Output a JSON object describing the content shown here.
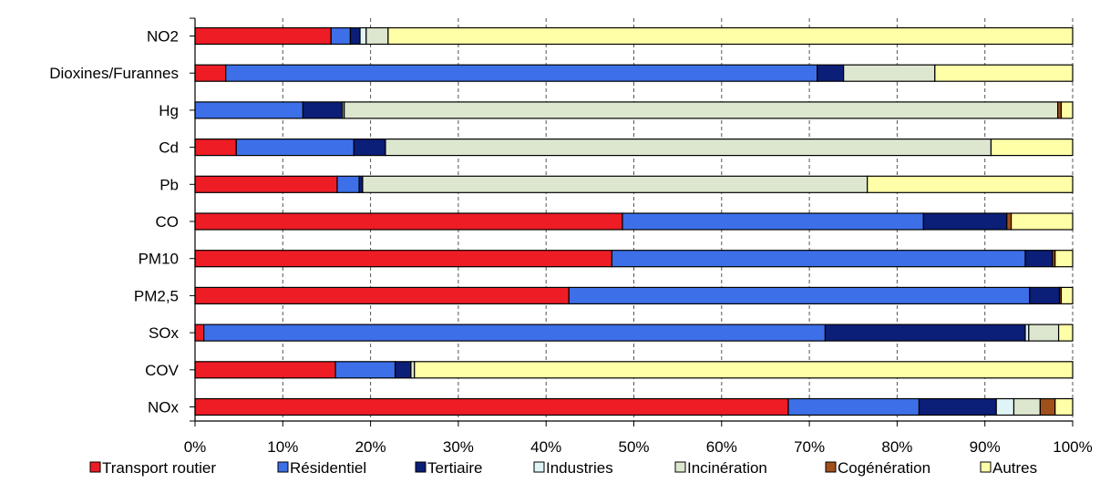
{
  "chart_data": {
    "type": "bar",
    "orientation": "horizontal",
    "stacked": true,
    "normalized": true,
    "categories": [
      "NO2",
      "Dioxines/Furannes",
      "Hg",
      "Cd",
      "Pb",
      "CO",
      "PM10",
      "PM2,5",
      "SOx",
      "COV",
      "NOx"
    ],
    "series": [
      {
        "name": "Transport routier",
        "color": "#ee1c25",
        "values": [
          15.5,
          3.5,
          0.0,
          4.7,
          16.2,
          48.7,
          47.5,
          42.6,
          1.0,
          16.0,
          67.6
        ]
      },
      {
        "name": "Résidentiel",
        "color": "#3d6fe8",
        "values": [
          2.2,
          67.4,
          12.3,
          13.4,
          2.5,
          34.3,
          47.1,
          52.5,
          70.8,
          6.8,
          14.9
        ]
      },
      {
        "name": "Tertiaire",
        "color": "#0b1e78",
        "values": [
          1.1,
          3.0,
          4.5,
          3.6,
          0.4,
          9.5,
          3.1,
          3.4,
          22.8,
          1.8,
          8.8
        ]
      },
      {
        "name": "Industries",
        "color": "#dff4f6",
        "values": [
          0.7,
          0.0,
          0.2,
          0.0,
          0.0,
          0.0,
          0.0,
          0.0,
          0.4,
          0.0,
          2.0
        ]
      },
      {
        "name": "Incinération",
        "color": "#dde7cf",
        "values": [
          2.5,
          10.4,
          81.3,
          69.0,
          57.5,
          0.0,
          0.0,
          0.0,
          3.4,
          0.4,
          3.0
        ]
      },
      {
        "name": "Cogénération",
        "color": "#a0501a",
        "values": [
          0.0,
          0.0,
          0.4,
          0.0,
          0.0,
          0.5,
          0.3,
          0.2,
          0.0,
          0.0,
          1.7
        ]
      },
      {
        "name": "Autres",
        "color": "#ffffa8",
        "values": [
          78.0,
          15.7,
          1.3,
          9.3,
          23.4,
          7.0,
          2.0,
          1.3,
          1.6,
          75.0,
          2.0
        ]
      }
    ],
    "xlim": [
      0,
      100
    ],
    "xticks": [
      "0%",
      "10%",
      "20%",
      "30%",
      "40%",
      "50%",
      "60%",
      "70%",
      "80%",
      "90%",
      "100%"
    ],
    "grid": "vertical dashed",
    "legend_position": "bottom"
  }
}
